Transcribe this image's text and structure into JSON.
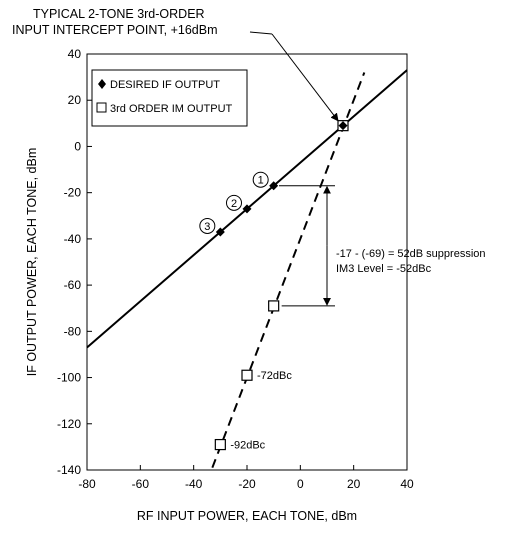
{
  "chart_data": {
    "type": "line",
    "xlabel": "RF INPUT POWER, EACH TONE, dBm",
    "ylabel": "IF OUTPUT POWER, EACH TONE, dBm",
    "xlim": [
      -80,
      40
    ],
    "ylim": [
      -140,
      40
    ],
    "x_ticks": [
      "-80",
      "-60",
      "-40",
      "-20",
      "0",
      "20",
      "40"
    ],
    "y_ticks": [
      "-140",
      "-120",
      "-100",
      "-80",
      "-60",
      "-40",
      "-20",
      "0",
      "20",
      "40"
    ],
    "grid": false,
    "legend_position": "top-left",
    "series": [
      {
        "name": "DESIRED IF OUTPUT",
        "marker": "filled-diamond",
        "line_style": "solid",
        "line": [
          [
            -80,
            -87
          ],
          [
            40,
            33
          ]
        ],
        "points": [
          [
            -30,
            -37
          ],
          [
            -20,
            -27
          ],
          [
            -10,
            -17
          ],
          [
            16,
            9
          ]
        ]
      },
      {
        "name": "3rd ORDER IM OUTPUT",
        "marker": "open-square",
        "line_style": "dashed",
        "line": [
          [
            -33,
            -139
          ],
          [
            24,
            32
          ]
        ],
        "points": [
          [
            -30,
            -129
          ],
          [
            -20,
            -99
          ],
          [
            -10,
            -69
          ],
          [
            16,
            9
          ]
        ]
      }
    ],
    "intercept_annotation": {
      "text_line1": "TYPICAL 2-TONE 3rd-ORDER",
      "text_line2": "INPUT INTERCEPT POINT, +16dBm",
      "point": [
        16,
        9
      ]
    },
    "point_labels": [
      {
        "text": "1",
        "at": [
          -10,
          -17
        ]
      },
      {
        "text": "2",
        "at": [
          -20,
          -27
        ]
      },
      {
        "text": "3",
        "at": [
          -30,
          -37
        ]
      }
    ],
    "dbc_labels": [
      {
        "text": "-72dBc",
        "at": [
          -20,
          -99
        ]
      },
      {
        "text": "-92dBc",
        "at": [
          -30,
          -129
        ]
      }
    ],
    "suppression": {
      "line1": "-17 - (-69)  = 52dB suppression",
      "line2": "IM3 Level = -52dBc",
      "top": -17,
      "bottom": -69
    }
  }
}
